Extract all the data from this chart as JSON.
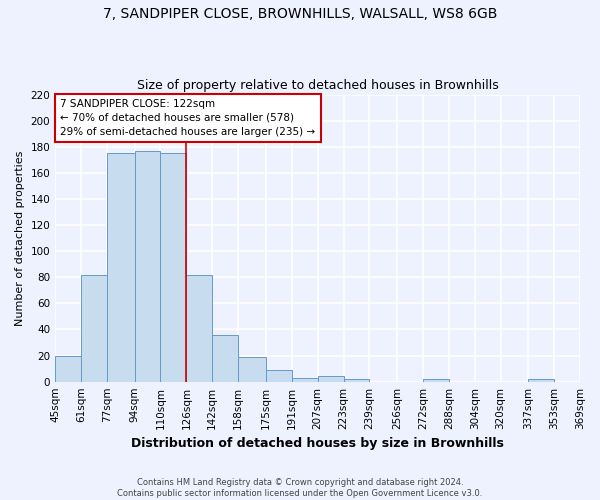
{
  "title": "7, SANDPIPER CLOSE, BROWNHILLS, WALSALL, WS8 6GB",
  "subtitle": "Size of property relative to detached houses in Brownhills",
  "xlabel": "Distribution of detached houses by size in Brownhills",
  "ylabel": "Number of detached properties",
  "bin_edges": [
    45,
    61,
    77,
    94,
    110,
    126,
    142,
    158,
    175,
    191,
    207,
    223,
    239,
    256,
    272,
    288,
    304,
    320,
    337,
    353,
    369
  ],
  "bin_labels": [
    "45sqm",
    "61sqm",
    "77sqm",
    "94sqm",
    "110sqm",
    "126sqm",
    "142sqm",
    "158sqm",
    "175sqm",
    "191sqm",
    "207sqm",
    "223sqm",
    "239sqm",
    "256sqm",
    "272sqm",
    "288sqm",
    "304sqm",
    "320sqm",
    "337sqm",
    "353sqm",
    "369sqm"
  ],
  "counts": [
    20,
    82,
    175,
    177,
    175,
    82,
    36,
    19,
    9,
    3,
    4,
    2,
    0,
    0,
    2,
    0,
    0,
    0,
    2,
    0
  ],
  "bar_color": "#c8dcf0",
  "bar_edge_color": "#6699cc",
  "property_line_x": 126,
  "property_line_color": "#cc0000",
  "annotation_title": "7 SANDPIPER CLOSE: 122sqm",
  "annotation_line1": "← 70% of detached houses are smaller (578)",
  "annotation_line2": "29% of semi-detached houses are larger (235) →",
  "annotation_box_color": "white",
  "annotation_box_edge": "#cc0000",
  "ylim": [
    0,
    220
  ],
  "yticks": [
    0,
    20,
    40,
    60,
    80,
    100,
    120,
    140,
    160,
    180,
    200,
    220
  ],
  "footer_line1": "Contains HM Land Registry data © Crown copyright and database right 2024.",
  "footer_line2": "Contains public sector information licensed under the Open Government Licence v3.0.",
  "background_color": "#eef2ff",
  "grid_color": "white",
  "title_fontsize": 10,
  "subtitle_fontsize": 9,
  "xlabel_fontsize": 9,
  "ylabel_fontsize": 8,
  "tick_fontsize": 7.5,
  "annotation_fontsize": 7.5,
  "footer_fontsize": 6
}
